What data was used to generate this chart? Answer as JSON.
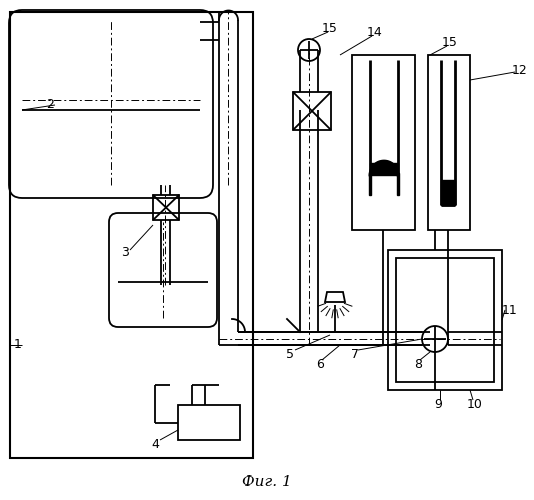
{
  "title": "Фиг. 1",
  "bg_color": "#ffffff",
  "lw": 1.3,
  "lw_thin": 0.8,
  "lw_thick": 2.0
}
